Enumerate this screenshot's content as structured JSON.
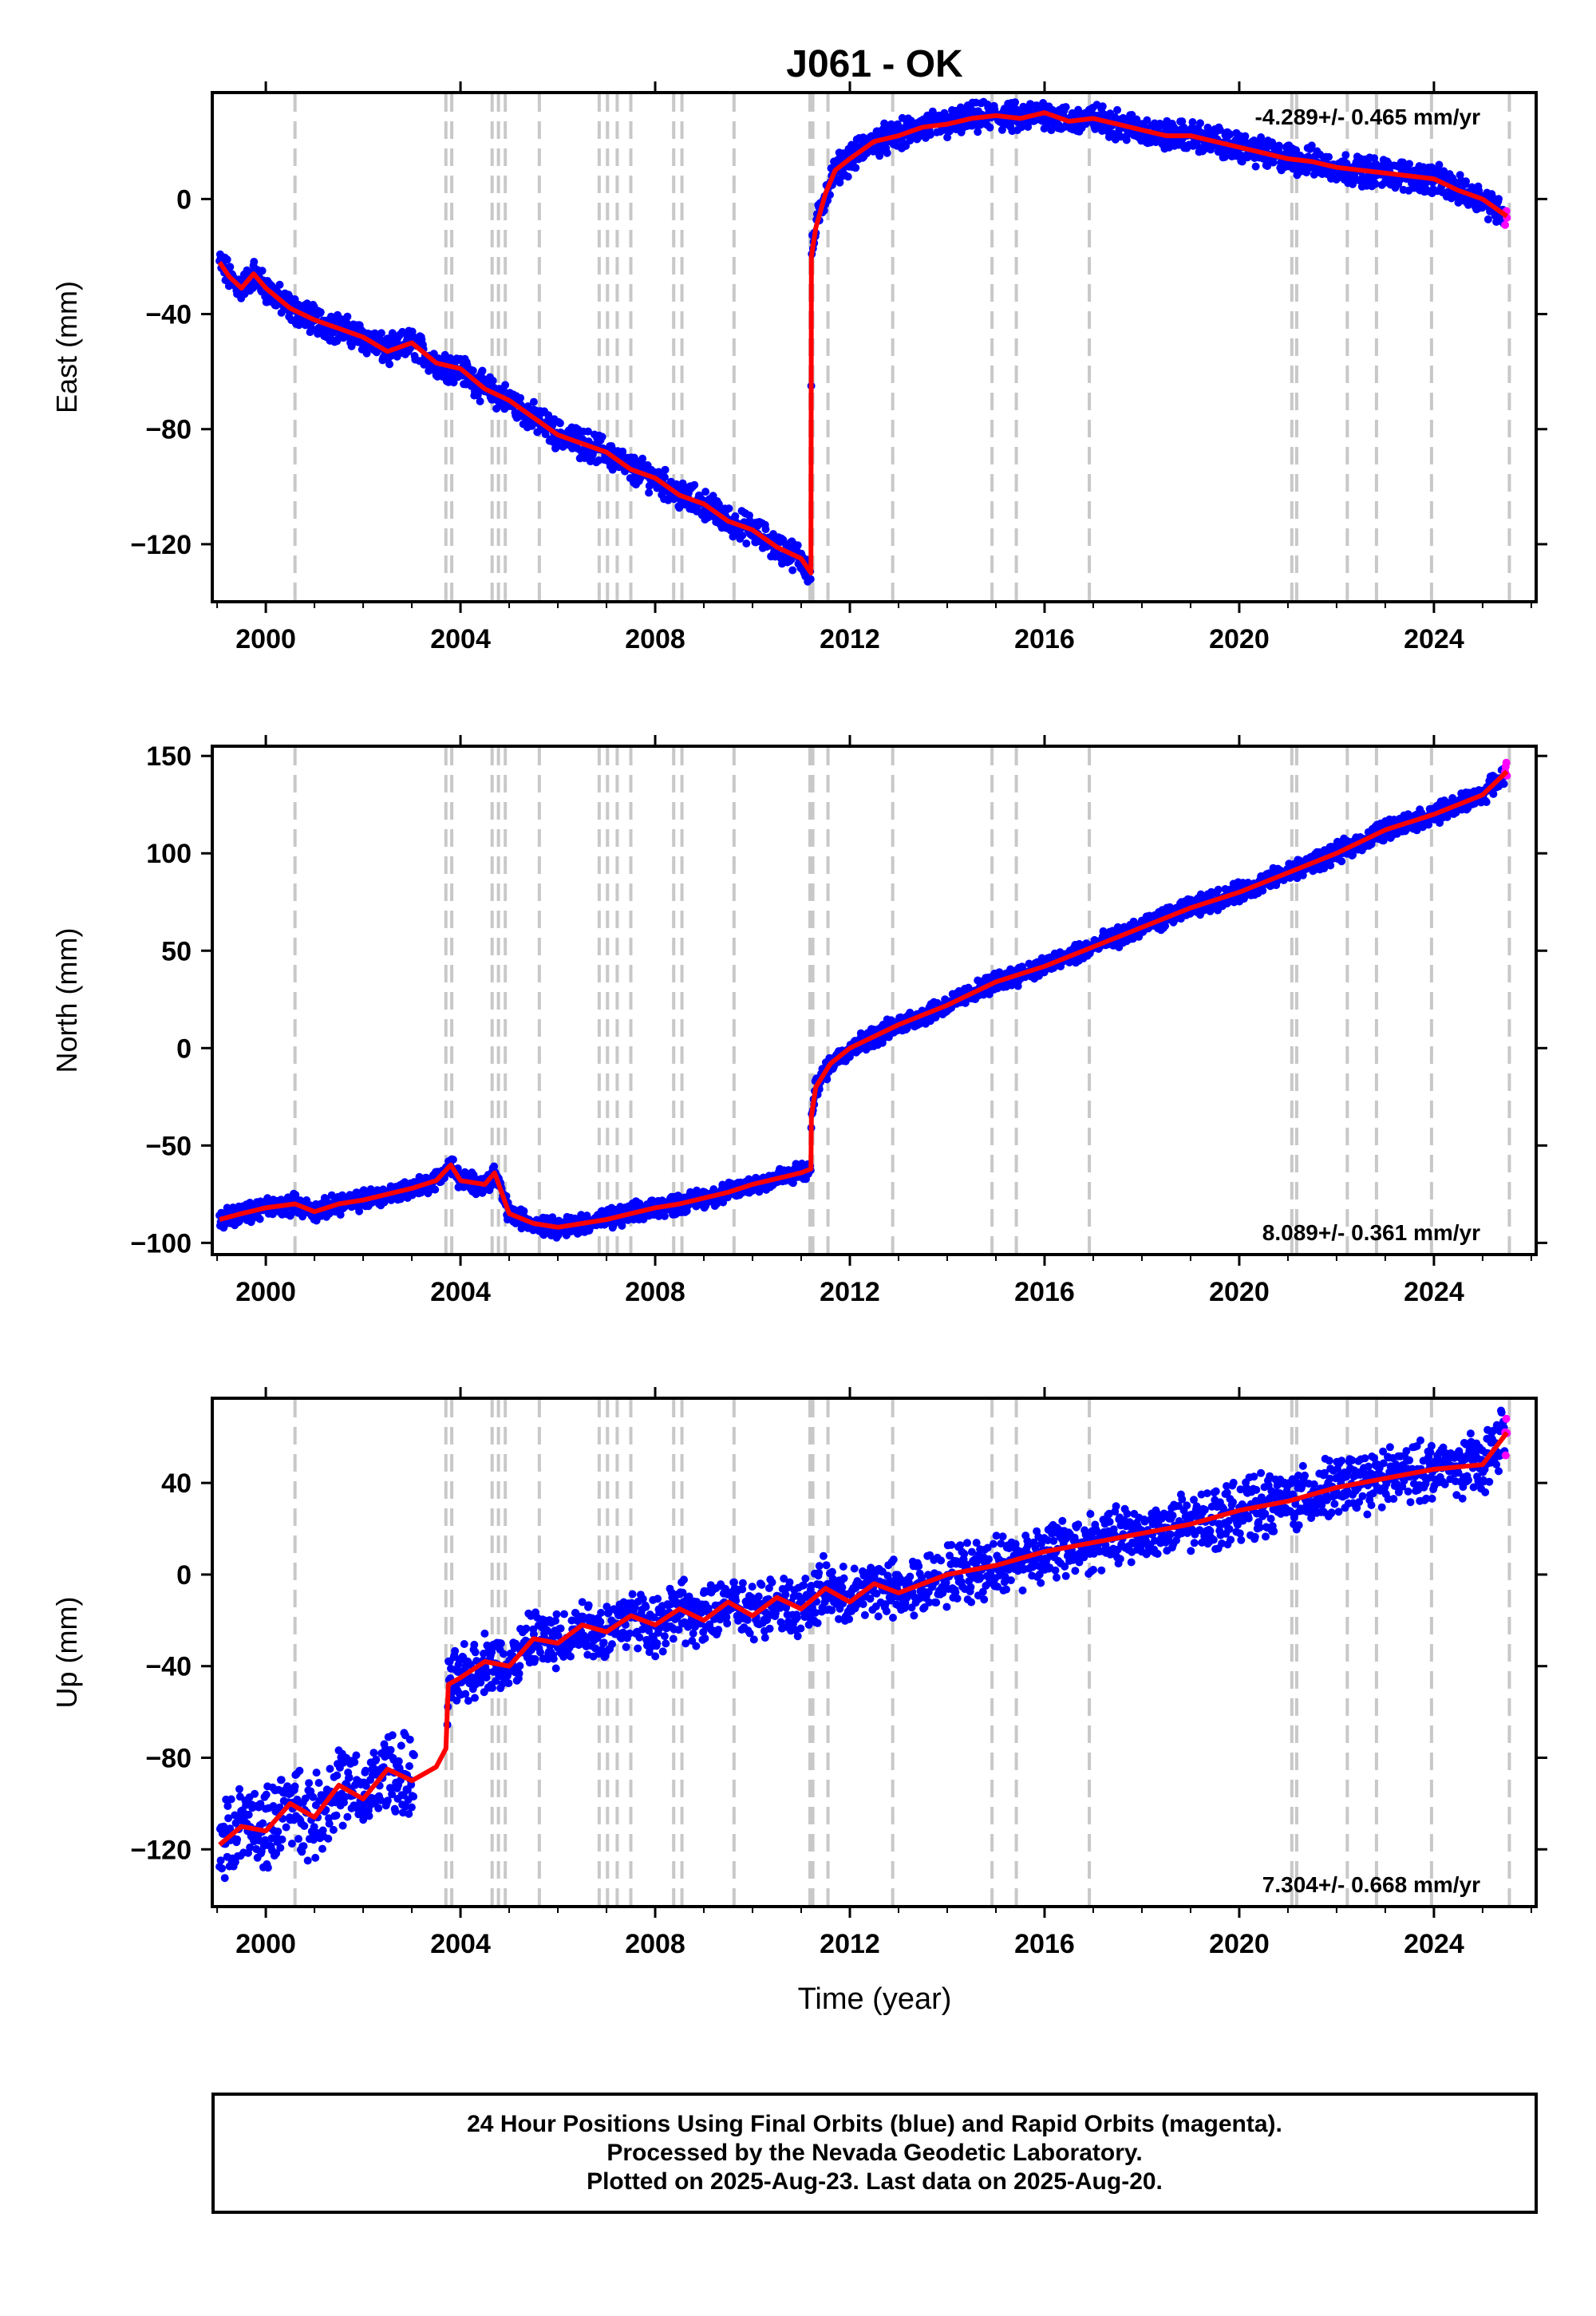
{
  "title": "J061 - OK",
  "xlabel": "Time (year)",
  "caption": [
    "24 Hour Positions Using Final Orbits (blue) and Rapid Orbits (magenta).",
    "Processed by the Nevada Geodetic Laboratory.",
    "Plotted on 2025-Aug-23. Last data on 2025-Aug-20."
  ],
  "colors": {
    "final_orbits": "#0000ff",
    "rapid_orbits": "#ff00ff",
    "model": "#ff0000",
    "event_lines": "#c8c8c8"
  },
  "chart_data": [
    {
      "type": "scatter",
      "component": "east",
      "ylabel": "East (mm)",
      "xlim": [
        1998.9,
        2026.1
      ],
      "ylim": [
        -140,
        37
      ],
      "xticks": [
        2000,
        2004,
        2008,
        2012,
        2016,
        2020,
        2024
      ],
      "yticks": [
        -120,
        -80,
        -40,
        0
      ],
      "rate_label": "-4.289+/- 0.465 mm/yr",
      "rate_position": "top-right",
      "series": [
        {
          "kind": "model",
          "x": [
            1999.05,
            1999.25,
            1999.5,
            1999.75,
            2000.0,
            2000.5,
            2001.0,
            2001.5,
            2002.0,
            2002.5,
            2003.0,
            2003.5,
            2004.0,
            2004.5,
            2005.0,
            2005.5,
            2006.0,
            2006.5,
            2007.0,
            2007.5,
            2008.0,
            2008.5,
            2009.0,
            2009.5,
            2010.0,
            2010.5,
            2011.0,
            2011.2,
            2011.21,
            2011.3,
            2011.5,
            2011.7,
            2012.0,
            2012.5,
            2013.0,
            2013.5,
            2014.0,
            2014.5,
            2015.0,
            2015.5,
            2016.0,
            2016.5,
            2017.0,
            2017.5,
            2018.0,
            2018.5,
            2019.0,
            2019.5,
            2020.0,
            2020.5,
            2021.0,
            2021.5,
            2022.0,
            2022.5,
            2023.0,
            2023.5,
            2024.0,
            2024.5,
            2025.0,
            2025.5
          ],
          "y": [
            -22,
            -27,
            -31,
            -26,
            -31,
            -38,
            -42,
            -45,
            -48,
            -53,
            -50,
            -57,
            -59,
            -66,
            -70,
            -76,
            -82,
            -85,
            -88,
            -94,
            -97,
            -103,
            -106,
            -112,
            -115,
            -121,
            -125,
            -130,
            -20,
            -10,
            2,
            10,
            14,
            20,
            22,
            25,
            26,
            28,
            29,
            28,
            30,
            27,
            28,
            26,
            24,
            22,
            22,
            20,
            18,
            16,
            14,
            13,
            11,
            10,
            9,
            8,
            7,
            3,
            0,
            -6
          ]
        }
      ]
    },
    {
      "type": "scatter",
      "component": "north",
      "ylabel": "North (mm)",
      "xlim": [
        1998.9,
        2026.1
      ],
      "ylim": [
        -106,
        155
      ],
      "xticks": [
        2000,
        2004,
        2008,
        2012,
        2016,
        2020,
        2024
      ],
      "yticks": [
        -100,
        -50,
        0,
        50,
        100,
        150
      ],
      "rate_label": "8.089+/- 0.361 mm/yr",
      "rate_position": "bottom-right",
      "series": [
        {
          "kind": "model",
          "x": [
            1999.05,
            1999.5,
            2000.0,
            2000.6,
            2001.0,
            2001.5,
            2002.0,
            2002.5,
            2003.0,
            2003.5,
            2003.8,
            2004.0,
            2004.5,
            2004.7,
            2005.0,
            2005.5,
            2006.0,
            2006.5,
            2007.0,
            2007.5,
            2008.0,
            2008.5,
            2009.0,
            2009.5,
            2010.0,
            2010.5,
            2011.0,
            2011.2,
            2011.21,
            2011.3,
            2011.6,
            2012.0,
            2012.5,
            2013.0,
            2014.0,
            2015.0,
            2016.0,
            2017.0,
            2018.0,
            2019.0,
            2020.0,
            2021.0,
            2022.0,
            2023.0,
            2024.0,
            2025.0,
            2025.5
          ],
          "y": [
            -88,
            -85,
            -82,
            -80,
            -84,
            -80,
            -78,
            -75,
            -72,
            -68,
            -60,
            -68,
            -70,
            -64,
            -85,
            -90,
            -92,
            -90,
            -88,
            -85,
            -82,
            -80,
            -77,
            -74,
            -70,
            -67,
            -64,
            -62,
            -35,
            -20,
            -8,
            0,
            6,
            12,
            22,
            34,
            42,
            52,
            62,
            72,
            80,
            90,
            100,
            112,
            120,
            130,
            142
          ]
        }
      ]
    },
    {
      "type": "scatter",
      "component": "up",
      "ylabel": "Up (mm)",
      "xlim": [
        1998.9,
        2026.1
      ],
      "ylim": [
        -145,
        77
      ],
      "xticks": [
        2000,
        2004,
        2008,
        2012,
        2016,
        2020,
        2024
      ],
      "yticks": [
        -120,
        -80,
        -40,
        0,
        40
      ],
      "rate_label": "7.304+/- 0.668 mm/yr",
      "rate_position": "bottom-right",
      "series": [
        {
          "kind": "model",
          "x": [
            1999.05,
            1999.5,
            2000.0,
            2000.5,
            2001.0,
            2001.5,
            2002.0,
            2002.5,
            2003.0,
            2003.5,
            2003.7,
            2003.75,
            2004.0,
            2004.5,
            2005.0,
            2005.5,
            2006.0,
            2006.5,
            2007.0,
            2007.5,
            2008.0,
            2008.5,
            2009.0,
            2009.5,
            2010.0,
            2010.5,
            2011.0,
            2011.5,
            2012.0,
            2012.5,
            2013.0,
            2014.0,
            2015.0,
            2016.0,
            2017.0,
            2018.0,
            2019.0,
            2020.0,
            2021.0,
            2022.0,
            2023.0,
            2024.0,
            2025.0,
            2025.5
          ],
          "y": [
            -118,
            -110,
            -112,
            -100,
            -106,
            -92,
            -98,
            -85,
            -90,
            -84,
            -76,
            -48,
            -45,
            -38,
            -40,
            -28,
            -30,
            -22,
            -25,
            -18,
            -22,
            -15,
            -20,
            -12,
            -18,
            -10,
            -15,
            -6,
            -12,
            -4,
            -8,
            0,
            4,
            10,
            14,
            18,
            22,
            28,
            32,
            38,
            42,
            46,
            48,
            62
          ]
        }
      ]
    }
  ]
}
